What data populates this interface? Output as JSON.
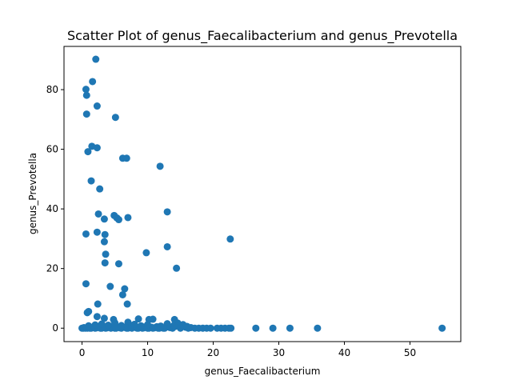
{
  "chart_data": {
    "type": "scatter",
    "title": "Scatter Plot of genus_Faecalibacterium and genus_Prevotella",
    "xlabel": "genus_Faecalibacterium",
    "ylabel": "genus_Prevotella",
    "xlim": [
      -2.75,
      57.75
    ],
    "ylim": [
      -4.5,
      94.5
    ],
    "xticks": [
      0,
      10,
      20,
      30,
      40,
      50
    ],
    "yticks": [
      0,
      20,
      40,
      60,
      80
    ],
    "xtick_labels": [
      "0",
      "10",
      "20",
      "30",
      "40",
      "50"
    ],
    "ytick_labels": [
      "0",
      "20",
      "40",
      "60",
      "80"
    ],
    "grid": false,
    "marker_color": "#1f77b4",
    "series": [
      {
        "points": [
          [
            2.1,
            90.2
          ],
          [
            0.6,
            80.1
          ],
          [
            1.6,
            82.7
          ],
          [
            0.7,
            78.1
          ],
          [
            2.3,
            74.5
          ],
          [
            0.7,
            71.8
          ],
          [
            5.1,
            70.7
          ],
          [
            1.5,
            61.0
          ],
          [
            0.9,
            59.2
          ],
          [
            2.3,
            60.5
          ],
          [
            6.2,
            57.0
          ],
          [
            6.8,
            57.0
          ],
          [
            11.9,
            54.3
          ],
          [
            1.4,
            49.4
          ],
          [
            2.7,
            46.7
          ],
          [
            2.5,
            38.3
          ],
          [
            4.9,
            37.8
          ],
          [
            5.3,
            37.0
          ],
          [
            5.6,
            36.4
          ],
          [
            7.0,
            37.1
          ],
          [
            13.0,
            39.0
          ],
          [
            3.4,
            36.6
          ],
          [
            0.6,
            31.6
          ],
          [
            2.3,
            32.2
          ],
          [
            3.5,
            31.4
          ],
          [
            3.4,
            29.0
          ],
          [
            22.6,
            29.9
          ],
          [
            13.0,
            27.3
          ],
          [
            3.6,
            24.8
          ],
          [
            9.8,
            25.3
          ],
          [
            3.5,
            21.9
          ],
          [
            5.6,
            21.6
          ],
          [
            14.4,
            20.1
          ],
          [
            0.6,
            14.9
          ],
          [
            4.3,
            14.0
          ],
          [
            6.5,
            13.2
          ],
          [
            6.2,
            11.2
          ],
          [
            6.9,
            8.1
          ],
          [
            2.4,
            8.1
          ],
          [
            1.0,
            5.6
          ],
          [
            0.8,
            5.2
          ],
          [
            2.3,
            3.9
          ],
          [
            3.4,
            3.3
          ],
          [
            7.0,
            2.0
          ],
          [
            8.6,
            3.1
          ],
          [
            10.2,
            2.9
          ],
          [
            10.8,
            3.0
          ],
          [
            14.1,
            2.9
          ],
          [
            4.8,
            2.9
          ],
          [
            0.0,
            0.0
          ],
          [
            0.3,
            0.2
          ],
          [
            0.6,
            0.1
          ],
          [
            1.0,
            0.3
          ],
          [
            1.4,
            0.0
          ],
          [
            1.8,
            0.4
          ],
          [
            2.2,
            0.1
          ],
          [
            2.6,
            0.5
          ],
          [
            3.0,
            0.0
          ],
          [
            3.4,
            0.3
          ],
          [
            3.8,
            0.1
          ],
          [
            4.2,
            0.6
          ],
          [
            4.6,
            0.2
          ],
          [
            5.0,
            0.0
          ],
          [
            5.4,
            0.4
          ],
          [
            5.8,
            0.1
          ],
          [
            6.2,
            0.5
          ],
          [
            6.6,
            0.2
          ],
          [
            7.0,
            0.0
          ],
          [
            7.4,
            0.3
          ],
          [
            7.8,
            1.0
          ],
          [
            8.2,
            0.2
          ],
          [
            8.6,
            0.0
          ],
          [
            9.0,
            0.4
          ],
          [
            9.4,
            0.1
          ],
          [
            9.8,
            0.6
          ],
          [
            10.2,
            0.0
          ],
          [
            10.6,
            0.3
          ],
          [
            11.0,
            0.1
          ],
          [
            11.4,
            0.5
          ],
          [
            11.8,
            0.0
          ],
          [
            12.2,
            0.2
          ],
          [
            12.6,
            0.0
          ],
          [
            13.0,
            1.5
          ],
          [
            13.4,
            0.2
          ],
          [
            13.8,
            0.0
          ],
          [
            14.2,
            0.6
          ],
          [
            14.6,
            1.7
          ],
          [
            15.0,
            0.0
          ],
          [
            15.4,
            1.2
          ],
          [
            15.8,
            0.3
          ],
          [
            16.2,
            0.0
          ],
          [
            16.6,
            0.2
          ],
          [
            17.2,
            0.0
          ],
          [
            17.8,
            0.0
          ],
          [
            18.4,
            0.0
          ],
          [
            19.0,
            0.0
          ],
          [
            19.6,
            0.0
          ],
          [
            20.6,
            0.0
          ],
          [
            21.2,
            0.0
          ],
          [
            21.8,
            0.0
          ],
          [
            22.4,
            0.0
          ],
          [
            22.7,
            0.0
          ],
          [
            26.5,
            0.0
          ],
          [
            29.1,
            0.0
          ],
          [
            31.7,
            0.0
          ],
          [
            35.9,
            0.0
          ],
          [
            54.9,
            0.0
          ],
          [
            0.2,
            0.0
          ],
          [
            0.5,
            0.0
          ],
          [
            0.8,
            0.0
          ],
          [
            1.2,
            0.0
          ],
          [
            2.0,
            0.0
          ],
          [
            2.8,
            0.0
          ],
          [
            3.6,
            0.0
          ],
          [
            4.4,
            0.0
          ],
          [
            5.2,
            0.0
          ],
          [
            6.0,
            0.0
          ],
          [
            6.8,
            0.0
          ],
          [
            7.6,
            0.0
          ],
          [
            8.4,
            0.0
          ],
          [
            9.2,
            0.0
          ],
          [
            10.0,
            0.0
          ],
          [
            10.8,
            0.0
          ],
          [
            11.6,
            0.0
          ],
          [
            12.4,
            0.0
          ],
          [
            4.0,
            1.0
          ],
          [
            5.0,
            1.8
          ],
          [
            6.0,
            0.9
          ],
          [
            8.0,
            1.3
          ],
          [
            9.0,
            0.8
          ],
          [
            12.0,
            0.7
          ],
          [
            2.0,
            1.1
          ],
          [
            3.0,
            1.4
          ],
          [
            1.0,
            0.8
          ],
          [
            16.0,
            0.6
          ],
          [
            14.0,
            0.9
          ],
          [
            10.0,
            1.2
          ]
        ]
      }
    ]
  }
}
